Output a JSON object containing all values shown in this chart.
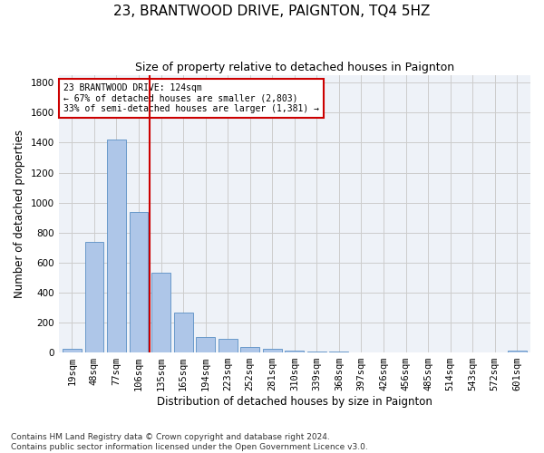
{
  "title": "23, BRANTWOOD DRIVE, PAIGNTON, TQ4 5HZ",
  "subtitle": "Size of property relative to detached houses in Paignton",
  "xlabel": "Distribution of detached houses by size in Paignton",
  "ylabel": "Number of detached properties",
  "bar_labels": [
    "19sqm",
    "48sqm",
    "77sqm",
    "106sqm",
    "135sqm",
    "165sqm",
    "194sqm",
    "223sqm",
    "252sqm",
    "281sqm",
    "310sqm",
    "339sqm",
    "368sqm",
    "397sqm",
    "426sqm",
    "456sqm",
    "485sqm",
    "514sqm",
    "543sqm",
    "572sqm",
    "601sqm"
  ],
  "bar_values": [
    22,
    740,
    1420,
    940,
    535,
    265,
    105,
    90,
    38,
    27,
    15,
    8,
    5,
    3,
    2,
    1,
    1,
    1,
    0,
    0,
    12
  ],
  "bar_color": "#aec6e8",
  "bar_edge_color": "#5a8fc4",
  "annotation_text": "23 BRANTWOOD DRIVE: 124sqm\n← 67% of detached houses are smaller (2,803)\n33% of semi-detached houses are larger (1,381) →",
  "annotation_box_color": "#ffffff",
  "annotation_border_color": "#cc0000",
  "vline_color": "#cc0000",
  "vline_x": 3.5,
  "ylim": [
    0,
    1850
  ],
  "yticks": [
    0,
    200,
    400,
    600,
    800,
    1000,
    1200,
    1400,
    1600,
    1800
  ],
  "grid_color": "#cccccc",
  "bg_color": "#eef2f8",
  "footer_text": "Contains HM Land Registry data © Crown copyright and database right 2024.\nContains public sector information licensed under the Open Government Licence v3.0.",
  "title_fontsize": 11,
  "subtitle_fontsize": 9,
  "axis_label_fontsize": 8.5,
  "tick_fontsize": 7.5,
  "footer_fontsize": 6.5
}
